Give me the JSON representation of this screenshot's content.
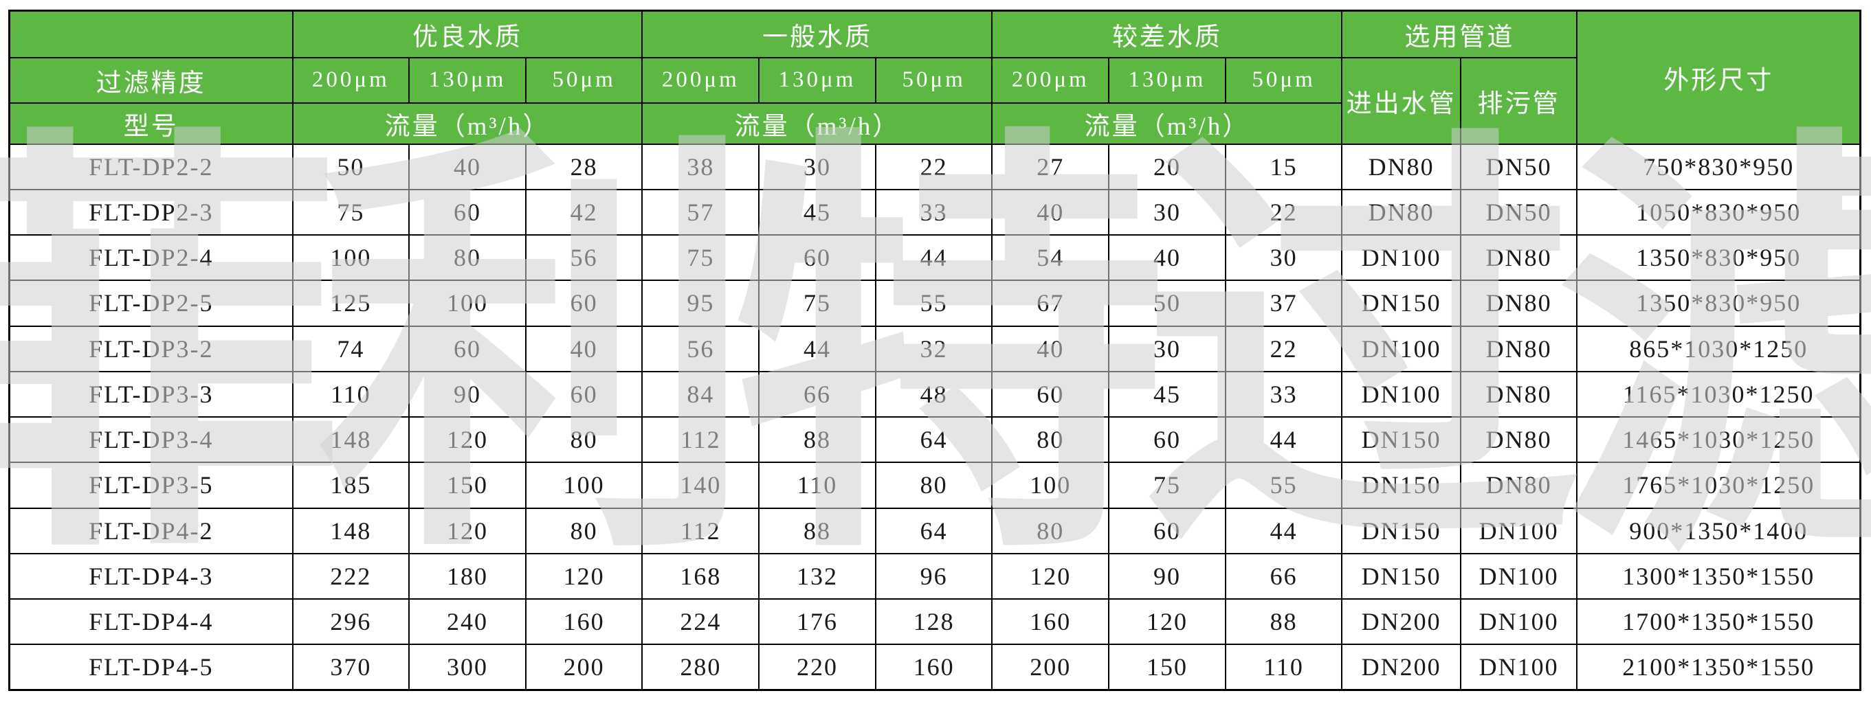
{
  "colors": {
    "header_green": "#5cb843",
    "grid_line": "#000000",
    "header_text": "#ffffff",
    "body_text": "#1a1a1a",
    "watermark_gray": "#d0d0d0"
  },
  "watermark": {
    "text": "菲利特过滤"
  },
  "table": {
    "header": {
      "corner_top": "",
      "filter_precision": "过滤精度",
      "model": "型号",
      "groups": [
        {
          "label": "优良水质"
        },
        {
          "label": "一般水质"
        },
        {
          "label": "较差水质"
        }
      ],
      "micron_labels": [
        "200μm",
        "130μm",
        "50μm"
      ],
      "flow_label": "流量（m³/h）",
      "pipes_group": "选用管道",
      "inlet_outlet": "进出水管",
      "drain": "排污管",
      "dimensions": "外形尺寸"
    },
    "rows": [
      {
        "model": "FLT-DP2-2",
        "excellent": [
          50,
          40,
          28
        ],
        "normal": [
          38,
          30,
          22
        ],
        "poor": [
          27,
          20,
          15
        ],
        "inlet": "DN80",
        "drain": "DN50",
        "dims": "750*830*950"
      },
      {
        "model": "FLT-DP2-3",
        "excellent": [
          75,
          60,
          42
        ],
        "normal": [
          57,
          45,
          33
        ],
        "poor": [
          40,
          30,
          22
        ],
        "inlet": "DN80",
        "drain": "DN50",
        "dims": "1050*830*950"
      },
      {
        "model": "FLT-DP2-4",
        "excellent": [
          100,
          80,
          56
        ],
        "normal": [
          75,
          60,
          44
        ],
        "poor": [
          54,
          40,
          30
        ],
        "inlet": "DN100",
        "drain": "DN80",
        "dims": "1350*830*950"
      },
      {
        "model": "FLT-DP2-5",
        "excellent": [
          125,
          100,
          60
        ],
        "normal": [
          95,
          75,
          55
        ],
        "poor": [
          67,
          50,
          37
        ],
        "inlet": "DN150",
        "drain": "DN80",
        "dims": "1350*830*950"
      },
      {
        "model": "FLT-DP3-2",
        "excellent": [
          74,
          60,
          40
        ],
        "normal": [
          56,
          44,
          32
        ],
        "poor": [
          40,
          30,
          22
        ],
        "inlet": "DN100",
        "drain": "DN80",
        "dims": "865*1030*1250"
      },
      {
        "model": "FLT-DP3-3",
        "excellent": [
          110,
          90,
          60
        ],
        "normal": [
          84,
          66,
          48
        ],
        "poor": [
          60,
          45,
          33
        ],
        "inlet": "DN100",
        "drain": "DN80",
        "dims": "1165*1030*1250"
      },
      {
        "model": "FLT-DP3-4",
        "excellent": [
          148,
          120,
          80
        ],
        "normal": [
          112,
          88,
          64
        ],
        "poor": [
          80,
          60,
          44
        ],
        "inlet": "DN150",
        "drain": "DN80",
        "dims": "1465*1030*1250"
      },
      {
        "model": "FLT-DP3-5",
        "excellent": [
          185,
          150,
          100
        ],
        "normal": [
          140,
          110,
          80
        ],
        "poor": [
          100,
          75,
          55
        ],
        "inlet": "DN150",
        "drain": "DN80",
        "dims": "1765*1030*1250"
      },
      {
        "model": "FLT-DP4-2",
        "excellent": [
          148,
          120,
          80
        ],
        "normal": [
          112,
          88,
          64
        ],
        "poor": [
          80,
          60,
          44
        ],
        "inlet": "DN150",
        "drain": "DN100",
        "dims": "900*1350*1400"
      },
      {
        "model": "FLT-DP4-3",
        "excellent": [
          222,
          180,
          120
        ],
        "normal": [
          168,
          132,
          96
        ],
        "poor": [
          120,
          90,
          66
        ],
        "inlet": "DN150",
        "drain": "DN100",
        "dims": "1300*1350*1550"
      },
      {
        "model": "FLT-DP4-4",
        "excellent": [
          296,
          240,
          160
        ],
        "normal": [
          224,
          176,
          128
        ],
        "poor": [
          160,
          120,
          88
        ],
        "inlet": "DN200",
        "drain": "DN100",
        "dims": "1700*1350*1550"
      },
      {
        "model": "FLT-DP4-5",
        "excellent": [
          370,
          300,
          200
        ],
        "normal": [
          280,
          220,
          160
        ],
        "poor": [
          200,
          150,
          110
        ],
        "inlet": "DN200",
        "drain": "DN100",
        "dims": "2100*1350*1550"
      }
    ]
  }
}
